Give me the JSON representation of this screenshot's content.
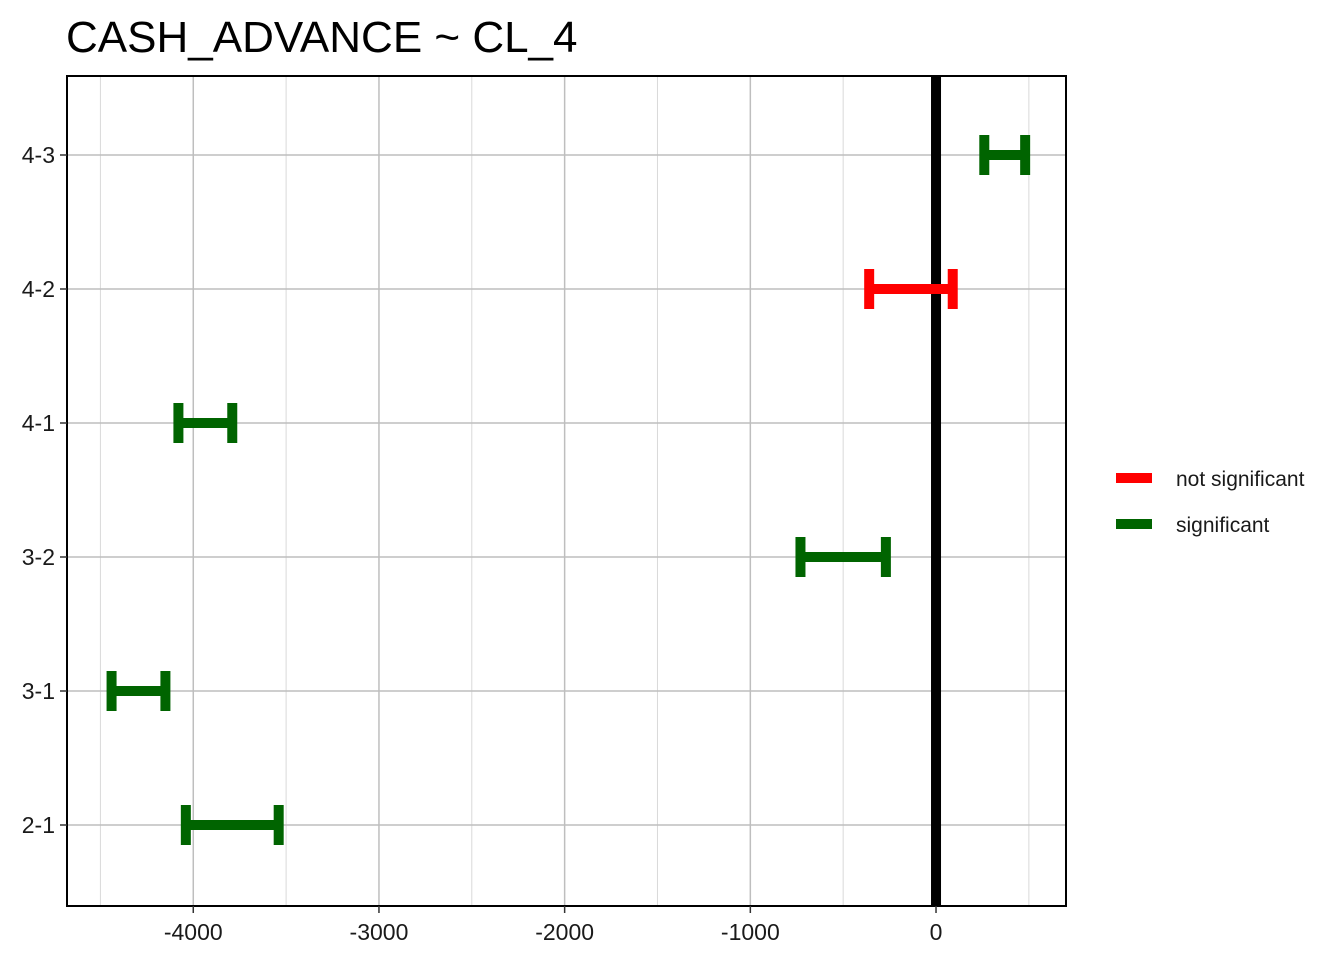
{
  "chart_data": {
    "type": "errorbar",
    "title": "CASH_ADVANCE  ~ CL_4",
    "xlabel": "",
    "ylabel": "",
    "xlim": [
      -4680,
      700
    ],
    "x_ticks": [
      -4000,
      -3000,
      -2000,
      -1000,
      0
    ],
    "x_tick_labels": [
      "-4000",
      "-3000",
      "-2000",
      "-1000",
      "0"
    ],
    "categories": [
      "2-1",
      "3-1",
      "3-2",
      "4-1",
      "4-2",
      "4-3"
    ],
    "intervals": [
      {
        "category": "2-1",
        "lwr": -4040,
        "upr": -3540,
        "group": "significant"
      },
      {
        "category": "3-1",
        "lwr": -4440,
        "upr": -4150,
        "group": "significant"
      },
      {
        "category": "3-2",
        "lwr": -730,
        "upr": -270,
        "group": "significant"
      },
      {
        "category": "4-1",
        "lwr": -4080,
        "upr": -3790,
        "group": "significant"
      },
      {
        "category": "4-2",
        "lwr": -360,
        "upr": 90,
        "group": "not significant"
      },
      {
        "category": "4-3",
        "lwr": 260,
        "upr": 480,
        "group": "significant"
      }
    ],
    "reference_line": 0,
    "grid": true,
    "legend": {
      "placement": "right",
      "items": [
        {
          "label": "not significant",
          "color": "#ff0000"
        },
        {
          "label": "significant",
          "color": "#006400"
        }
      ]
    },
    "colors": {
      "not significant": "#ff0000",
      "significant": "#006400",
      "reference": "#000000",
      "grid_major": "#bebebe",
      "grid_minor": "#d9d9d9"
    }
  }
}
